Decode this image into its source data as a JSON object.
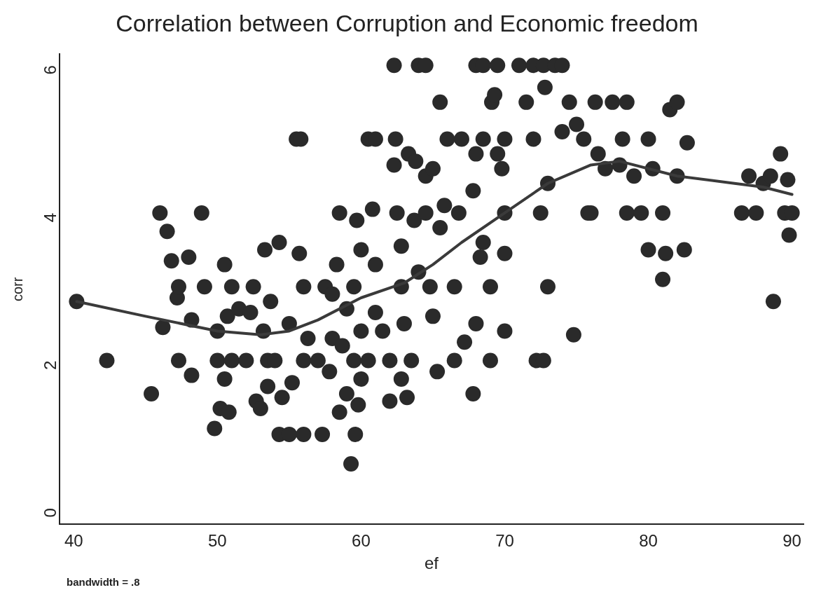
{
  "chart_data": {
    "type": "scatter",
    "title": "Correlation between Corruption and Economic freedom",
    "xlabel": "ef",
    "ylabel": "corr",
    "xlim": [
      39,
      90.8
    ],
    "xticks": [
      40,
      50,
      60,
      70,
      80,
      90
    ],
    "ylim": [
      -0.22,
      6.15
    ],
    "yticks": [
      0,
      2,
      4,
      6
    ],
    "grid": false,
    "legend": false,
    "marker": "circle",
    "annotations": [
      "bandwidth = .8"
    ],
    "series": [
      {
        "type": "scatter",
        "color": "#2a2a2a",
        "x": [
          40.2,
          42.3,
          45.4,
          46,
          46.2,
          46.5,
          46.8,
          47.2,
          47.3,
          47.3,
          48,
          48.2,
          48.2,
          48.9,
          49.1,
          49.8,
          50,
          50,
          50.2,
          50.5,
          50.5,
          50.7,
          50.8,
          51,
          51,
          51.5,
          52,
          52.3,
          52.5,
          52.7,
          53,
          53.2,
          53.3,
          53.5,
          53.5,
          53.7,
          54,
          54.3,
          54.3,
          54.5,
          55,
          55,
          55.2,
          55.5,
          55.8,
          55.7,
          56,
          56,
          56,
          56.3,
          57,
          57.3,
          57.5,
          57.8,
          58,
          58,
          58.3,
          58.5,
          58.5,
          58.7,
          59,
          59,
          59.3,
          59.5,
          59.5,
          59.6,
          59.7,
          59.8,
          60,
          60,
          60,
          60.5,
          60.5,
          60.8,
          61,
          61,
          61,
          61.5,
          62,
          62,
          62.3,
          62.3,
          62.4,
          62.5,
          62.8,
          62.8,
          62.8,
          63,
          63.2,
          63.3,
          63.5,
          63.7,
          63.8,
          64,
          64,
          64.5,
          64.5,
          64.5,
          64.8,
          65,
          65,
          65.3,
          65.5,
          65.5,
          65.8,
          66,
          66.5,
          66.5,
          66.8,
          67,
          67.2,
          67.8,
          67.8,
          68,
          68,
          68,
          68.3,
          68.5,
          68.5,
          68.5,
          69,
          69,
          69.1,
          69.3,
          69.5,
          69.5,
          69.8,
          70,
          70,
          70,
          70,
          71,
          71.5,
          72,
          72,
          72.2,
          72.5,
          72.7,
          72.7,
          72.8,
          73,
          73,
          73.5,
          74,
          74,
          74.5,
          74.8,
          75,
          75.5,
          75.8,
          76,
          76.3,
          76.5,
          77,
          77.5,
          78,
          78.2,
          78.5,
          78.5,
          79,
          79.5,
          80,
          80,
          80.3,
          81,
          81,
          81.2,
          81.5,
          82,
          82,
          82.5,
          82.7,
          86.5,
          87,
          87.5,
          88,
          88.5,
          88.7,
          89.2,
          89.5,
          89.7,
          89.8,
          90
        ],
        "values": [
          2.8,
          2,
          1.55,
          4,
          2.45,
          3.75,
          3.35,
          2.85,
          3,
          2,
          3.4,
          2.55,
          1.8,
          4,
          3,
          1.08,
          2,
          2.4,
          1.35,
          3.3,
          1.75,
          2.6,
          1.3,
          2,
          3,
          2.7,
          2,
          2.65,
          3,
          1.45,
          1.35,
          2.4,
          3.5,
          2,
          1.65,
          2.8,
          2,
          3.6,
          1,
          1.5,
          2.5,
          1,
          1.7,
          5,
          5,
          3.45,
          1,
          2,
          3,
          2.3,
          2,
          1,
          3,
          1.85,
          2.3,
          2.9,
          3.3,
          4,
          1.3,
          2.2,
          2.7,
          1.55,
          0.6,
          3,
          2,
          1,
          3.9,
          1.4,
          2.4,
          1.75,
          3.5,
          2,
          5,
          4.05,
          2.65,
          5,
          3.3,
          2.4,
          2,
          1.45,
          4.65,
          6,
          5,
          4,
          3.55,
          3,
          1.75,
          2.5,
          1.5,
          4.8,
          2,
          3.9,
          4.7,
          3.2,
          6,
          6,
          4,
          4.5,
          3,
          2.6,
          4.6,
          1.85,
          5.5,
          3.8,
          4.1,
          5,
          3,
          2,
          4,
          5,
          2.25,
          4.3,
          1.55,
          6,
          4.8,
          2.5,
          3.4,
          3.6,
          5,
          6,
          2,
          3,
          5.5,
          5.6,
          6,
          4.8,
          4.6,
          2.4,
          3.45,
          4,
          5,
          6,
          5.5,
          6,
          5,
          2,
          4,
          2,
          6,
          5.7,
          3,
          4.4,
          6,
          5.1,
          6,
          5.5,
          2.35,
          5.2,
          5,
          4,
          4,
          5.5,
          4.8,
          4.6,
          5.5,
          4.65,
          5,
          5.5,
          4,
          4.5,
          4,
          5,
          3.5,
          4.6,
          4,
          3.1,
          3.45,
          5.4,
          5.5,
          4.5,
          3.5,
          4.95,
          4,
          4.5,
          4,
          4.4,
          4.5,
          2.8,
          4.8,
          4,
          4.45,
          3.7,
          4
        ]
      },
      {
        "type": "line",
        "color": "#3a3a3a",
        "marker": "none",
        "x": [
          40.2,
          45,
          50,
          53,
          55,
          57,
          60,
          63,
          65,
          67,
          70,
          73,
          76,
          78,
          82,
          86,
          88,
          90
        ],
        "values": [
          2.8,
          2.6,
          2.4,
          2.35,
          2.4,
          2.55,
          2.85,
          3.05,
          3.3,
          3.6,
          4,
          4.4,
          4.65,
          4.7,
          4.5,
          4.4,
          4.35,
          4.25
        ]
      }
    ]
  }
}
